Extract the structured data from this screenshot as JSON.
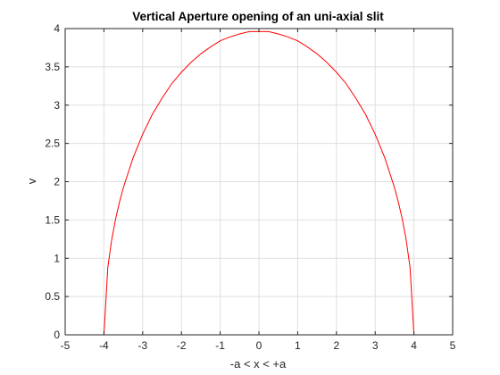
{
  "chart_data": {
    "type": "line",
    "title": "Vertical Aperture opening of an uni-axial slit",
    "xlabel": "-a < x < +a",
    "ylabel": "v",
    "xlim": [
      -5,
      5
    ],
    "ylim": [
      0,
      4
    ],
    "xticks": [
      -5,
      -4,
      -3,
      -2,
      -1,
      0,
      1,
      2,
      3,
      4,
      5
    ],
    "xtick_labels": [
      "-5",
      "-4",
      "-3",
      "-2",
      "-1",
      "0",
      "1",
      "2",
      "3",
      "4",
      "5"
    ],
    "yticks": [
      0,
      0.5,
      1,
      1.5,
      2,
      2.5,
      3,
      3.5,
      4
    ],
    "ytick_labels": [
      "0",
      "0.5",
      "1",
      "1.5",
      "2",
      "2.5",
      "3",
      "3.5",
      "4"
    ],
    "grid": true,
    "series": [
      {
        "color": "#ff0000",
        "x": [
          -4,
          -3.9,
          -3.8,
          -3.7,
          -3.6,
          -3.5,
          -3.25,
          -3,
          -2.75,
          -2.5,
          -2.25,
          -2,
          -1.75,
          -1.5,
          -1.25,
          -1,
          -0.75,
          -0.5,
          -0.25,
          0,
          0.25,
          0.5,
          0.75,
          1,
          1.25,
          1.5,
          1.75,
          2,
          2.25,
          2.5,
          2.75,
          3,
          3.25,
          3.5,
          3.6,
          3.7,
          3.8,
          3.9,
          4
        ],
        "y": [
          0,
          0.88,
          1.24,
          1.51,
          1.73,
          1.92,
          2.31,
          2.62,
          2.88,
          3.09,
          3.28,
          3.43,
          3.56,
          3.67,
          3.76,
          3.84,
          3.89,
          3.93,
          3.96,
          3.96,
          3.96,
          3.93,
          3.89,
          3.84,
          3.76,
          3.67,
          3.56,
          3.43,
          3.28,
          3.09,
          2.88,
          2.62,
          2.31,
          1.92,
          1.73,
          1.51,
          1.24,
          0.88,
          0
        ]
      }
    ]
  }
}
